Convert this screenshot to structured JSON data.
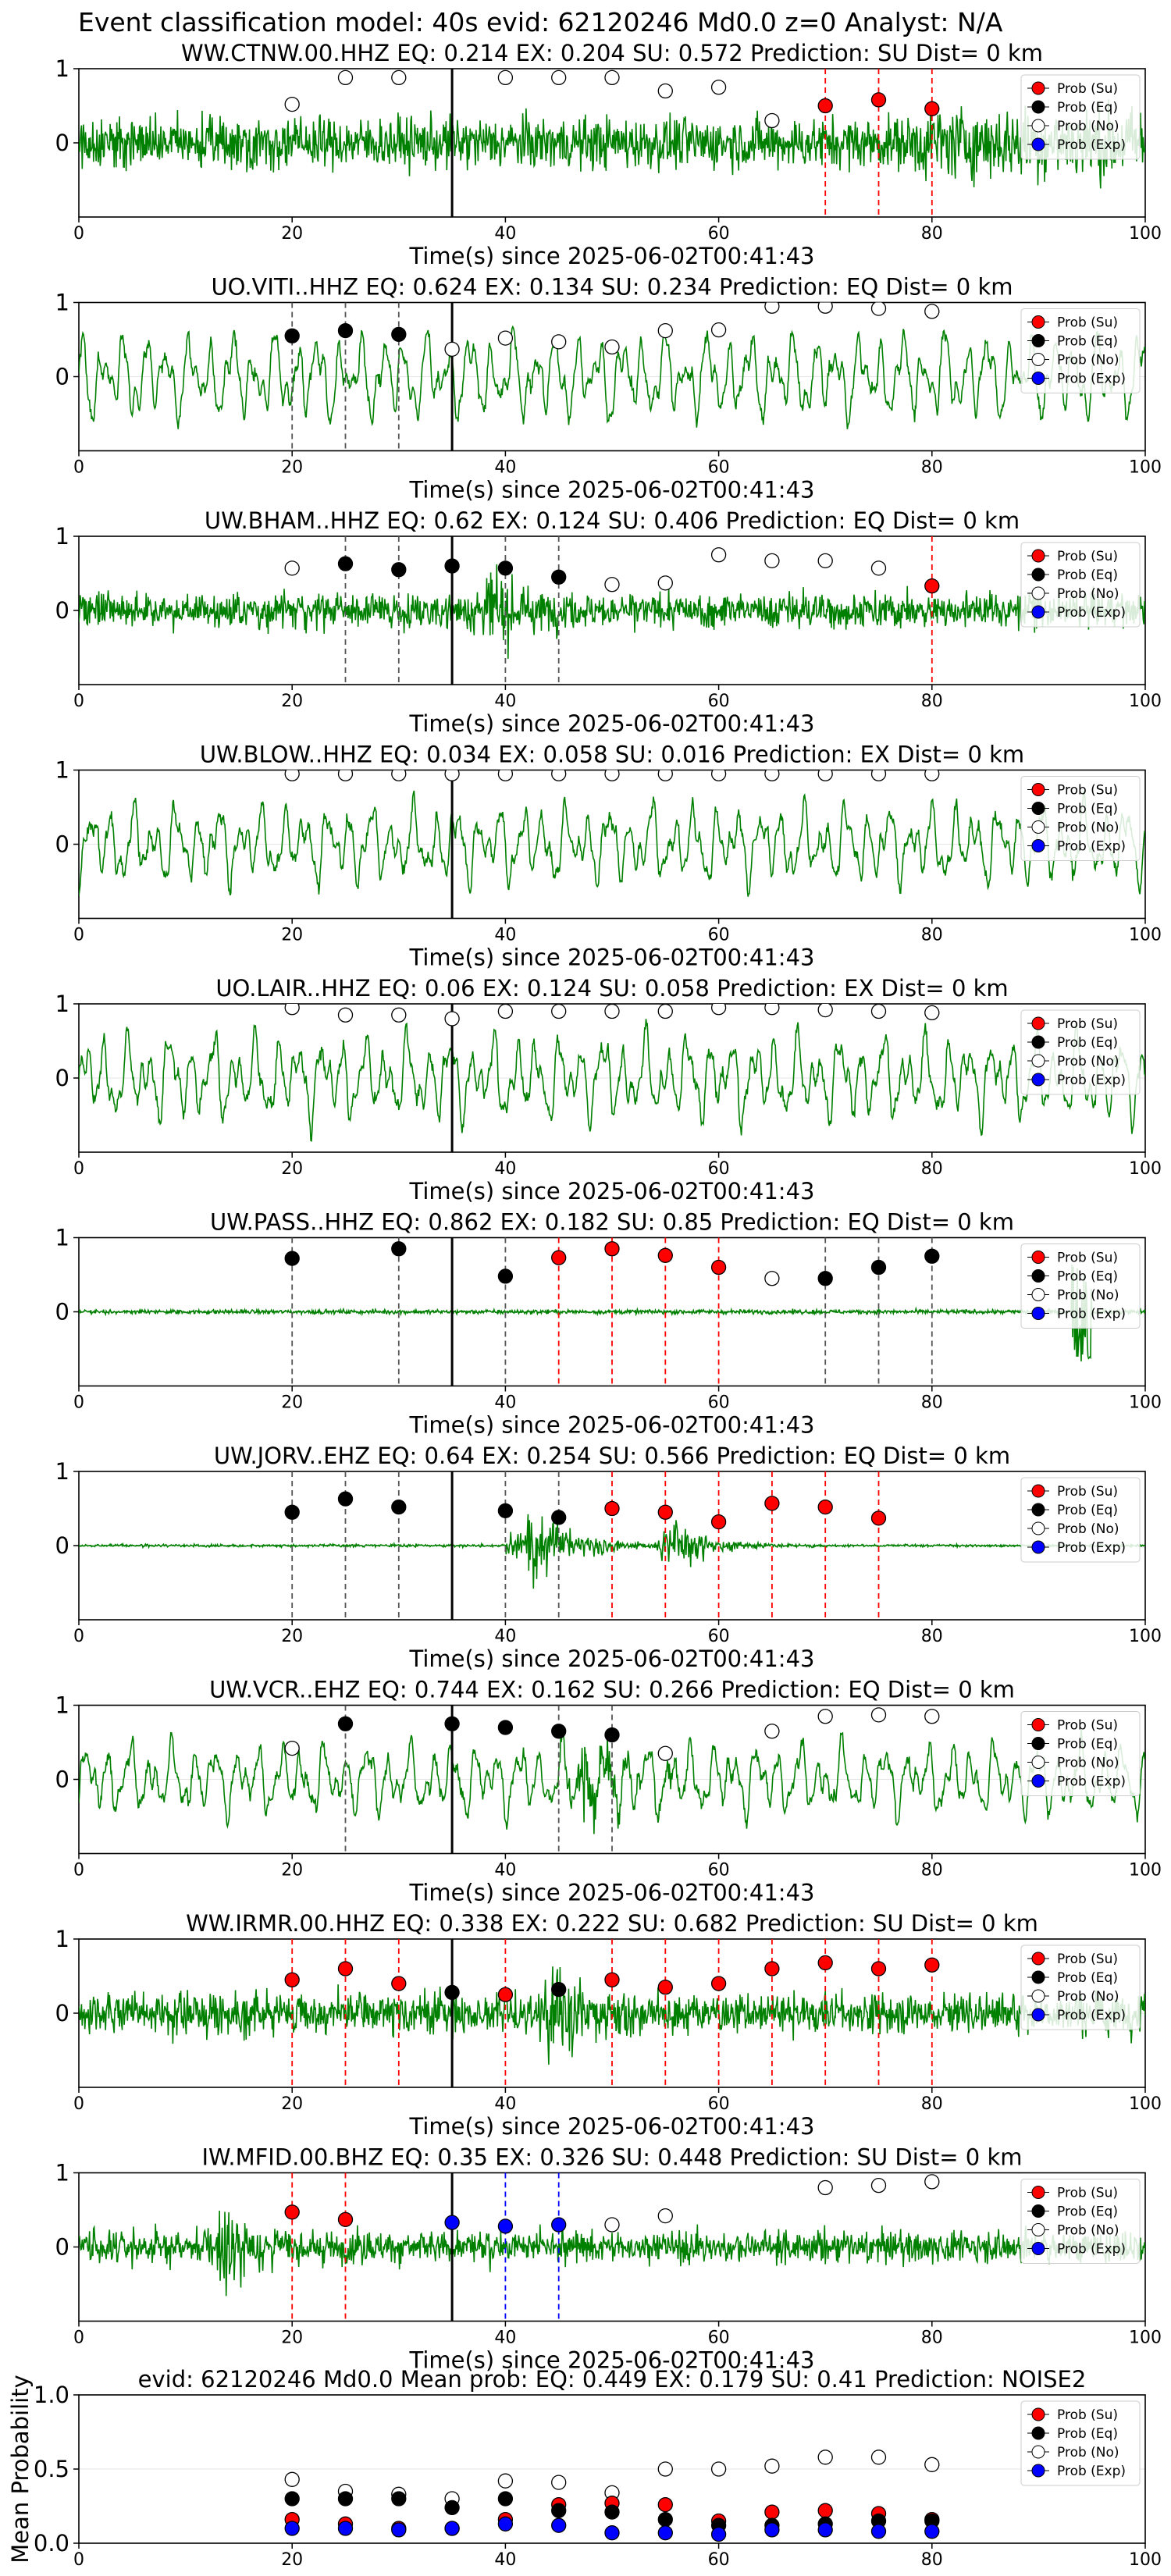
{
  "figure": {
    "suptitle": "Event classification model: 40s evid: 62120246 Md0.0 z=0 Analyst: N/A"
  },
  "legend_labels": [
    "Prob (Su)",
    "Prob (Eq)",
    "Prob (No)",
    "Prob (Exp)"
  ],
  "colors": {
    "su": "#ff0000",
    "eq": "#000000",
    "no": "#ffffff",
    "exp": "#0000ff",
    "waveform": "#008000",
    "origin_line": "#000000",
    "su_line": "#ff0000",
    "eq_line": "#555555",
    "exp_line": "#0000ff"
  },
  "xlabel": "Time(s) since 2025-06-02T00:41:43",
  "origin_time_s": 35,
  "chart_data": [
    {
      "type": "line",
      "title": "WW.CTNW.00.HHZ   EQ: 0.214  EX: 0.204  SU: 0.572   Prediction: SU    Dist= 0 km",
      "xlabel": "Time(s) since 2025-06-02T00:41:43",
      "xlim": [
        0,
        100
      ],
      "ylim": [
        -1,
        1
      ],
      "xticks": [
        0,
        20,
        40,
        60,
        80,
        100
      ],
      "yticks": [
        0,
        1
      ],
      "waveform": {
        "style": "noise",
        "amplitude": 0.45,
        "tail_boost": 1.4
      },
      "prob_points": {
        "no": [
          [
            20,
            0.52
          ],
          [
            25,
            0.88
          ],
          [
            30,
            0.88
          ],
          [
            40,
            0.88
          ],
          [
            45,
            0.88
          ],
          [
            50,
            0.88
          ],
          [
            55,
            0.7
          ],
          [
            60,
            0.75
          ],
          [
            65,
            0.3
          ]
        ],
        "su": [
          [
            70,
            0.5
          ],
          [
            75,
            0.58
          ],
          [
            80,
            0.46
          ]
        ],
        "eq": [],
        "exp": []
      },
      "picks": {
        "su": [
          70,
          75,
          80
        ],
        "eq": [],
        "exp": []
      }
    },
    {
      "type": "line",
      "title": "UO.VITI..HHZ   EQ: 0.624  EX: 0.134  SU: 0.234   Prediction: EQ    Dist= 0 km",
      "xlabel": "Time(s) since 2025-06-02T00:41:43",
      "xlim": [
        0,
        100
      ],
      "ylim": [
        -1,
        1
      ],
      "xticks": [
        0,
        20,
        40,
        60,
        80,
        100
      ],
      "yticks": [
        0,
        1
      ],
      "waveform": {
        "style": "wavy",
        "amplitude": 0.6
      },
      "prob_points": {
        "eq": [
          [
            20,
            0.55
          ],
          [
            25,
            0.62
          ],
          [
            30,
            0.57
          ]
        ],
        "no": [
          [
            35,
            0.37
          ],
          [
            40,
            0.52
          ],
          [
            45,
            0.47
          ],
          [
            50,
            0.4
          ],
          [
            55,
            0.62
          ],
          [
            60,
            0.63
          ],
          [
            65,
            0.95
          ],
          [
            70,
            0.95
          ],
          [
            75,
            0.92
          ],
          [
            80,
            0.88
          ]
        ],
        "su": [],
        "exp": []
      },
      "picks": {
        "su": [],
        "eq": [
          20,
          25,
          30
        ],
        "exp": []
      }
    },
    {
      "type": "line",
      "title": "UW.BHAM..HHZ   EQ: 0.62  EX: 0.124  SU: 0.406   Prediction: EQ    Dist= 0 km",
      "xlabel": "Time(s) since 2025-06-02T00:41:43",
      "xlim": [
        0,
        100
      ],
      "ylim": [
        -1,
        1
      ],
      "xticks": [
        0,
        20,
        40,
        60,
        80,
        100
      ],
      "yticks": [
        0,
        1
      ],
      "waveform": {
        "style": "noise",
        "amplitude": 0.3,
        "burst_at": 38,
        "burst_amp": 0.75
      },
      "prob_points": {
        "no": [
          [
            20,
            0.57
          ],
          [
            50,
            0.35
          ],
          [
            55,
            0.37
          ],
          [
            60,
            0.75
          ],
          [
            65,
            0.67
          ],
          [
            70,
            0.67
          ],
          [
            75,
            0.57
          ]
        ],
        "eq": [
          [
            25,
            0.63
          ],
          [
            30,
            0.55
          ],
          [
            35,
            0.6
          ],
          [
            40,
            0.57
          ],
          [
            45,
            0.45
          ]
        ],
        "su": [
          [
            80,
            0.33
          ]
        ],
        "exp": []
      },
      "picks": {
        "su": [
          80
        ],
        "eq": [
          25,
          30,
          40,
          45
        ],
        "exp": []
      }
    },
    {
      "type": "line",
      "title": "UW.BLOW..HHZ   EQ: 0.034  EX: 0.058  SU: 0.016   Prediction: EX    Dist= 0 km",
      "xlabel": "Time(s) since 2025-06-02T00:41:43",
      "xlim": [
        0,
        100
      ],
      "ylim": [
        -1,
        1
      ],
      "xticks": [
        0,
        20,
        40,
        60,
        80,
        100
      ],
      "yticks": [
        0,
        1
      ],
      "waveform": {
        "style": "wavy",
        "amplitude": 0.55
      },
      "prob_points": {
        "no": [
          [
            20,
            0.95
          ],
          [
            25,
            0.95
          ],
          [
            30,
            0.95
          ],
          [
            35,
            0.95
          ],
          [
            40,
            0.95
          ],
          [
            45,
            0.95
          ],
          [
            50,
            0.95
          ],
          [
            55,
            0.95
          ],
          [
            60,
            0.95
          ],
          [
            65,
            0.95
          ],
          [
            70,
            0.95
          ],
          [
            75,
            0.95
          ],
          [
            80,
            0.95
          ]
        ],
        "su": [],
        "eq": [],
        "exp": []
      },
      "picks": {
        "su": [],
        "eq": [],
        "exp": []
      }
    },
    {
      "type": "line",
      "title": "UO.LAIR..HHZ   EQ: 0.06  EX: 0.124  SU: 0.058   Prediction: EX    Dist= 0 km",
      "xlabel": "Time(s) since 2025-06-02T00:41:43",
      "xlim": [
        0,
        100
      ],
      "ylim": [
        -1,
        1
      ],
      "xticks": [
        0,
        20,
        40,
        60,
        80,
        100
      ],
      "yticks": [
        0,
        1
      ],
      "waveform": {
        "style": "wavy",
        "amplitude": 0.6
      },
      "prob_points": {
        "no": [
          [
            20,
            0.95
          ],
          [
            25,
            0.85
          ],
          [
            30,
            0.85
          ],
          [
            35,
            0.8
          ],
          [
            40,
            0.9
          ],
          [
            45,
            0.9
          ],
          [
            50,
            0.9
          ],
          [
            55,
            0.9
          ],
          [
            60,
            0.95
          ],
          [
            65,
            0.95
          ],
          [
            70,
            0.92
          ],
          [
            75,
            0.9
          ],
          [
            80,
            0.88
          ]
        ],
        "su": [],
        "eq": [],
        "exp": []
      },
      "picks": {
        "su": [],
        "eq": [],
        "exp": []
      }
    },
    {
      "type": "line",
      "title": "UW.PASS..HHZ   EQ: 0.862  EX: 0.182  SU: 0.85   Prediction: EQ    Dist= 0 km",
      "xlabel": "Time(s) since 2025-06-02T00:41:43",
      "xlim": [
        0,
        100
      ],
      "ylim": [
        -1,
        1
      ],
      "xticks": [
        0,
        20,
        40,
        60,
        80,
        100
      ],
      "yticks": [
        0,
        1
      ],
      "waveform": {
        "style": "quiet",
        "amplitude": 0.05,
        "tail_spike": 0.65
      },
      "prob_points": {
        "eq": [
          [
            20,
            0.72
          ],
          [
            30,
            0.85
          ],
          [
            40,
            0.48
          ],
          [
            70,
            0.45
          ],
          [
            75,
            0.6
          ],
          [
            80,
            0.75
          ]
        ],
        "su": [
          [
            45,
            0.73
          ],
          [
            50,
            0.85
          ],
          [
            55,
            0.76
          ],
          [
            60,
            0.6
          ]
        ],
        "no": [
          [
            65,
            0.45
          ]
        ],
        "exp": []
      },
      "picks": {
        "su": [
          45,
          50,
          55,
          60
        ],
        "eq": [
          20,
          30,
          40,
          70,
          75,
          80
        ],
        "exp": []
      }
    },
    {
      "type": "line",
      "title": "UW.JORV..EHZ   EQ: 0.64  EX: 0.254  SU: 0.566   Prediction: EQ    Dist= 0 km",
      "xlabel": "Time(s) since 2025-06-02T00:41:43",
      "xlim": [
        0,
        100
      ],
      "ylim": [
        -1,
        1
      ],
      "xticks": [
        0,
        20,
        40,
        60,
        80,
        100
      ],
      "yticks": [
        0,
        1
      ],
      "waveform": {
        "style": "quiet",
        "amplitude": 0.03,
        "burst_at": 42,
        "burst_amp": 0.85,
        "burst2_at": 56,
        "burst2_amp": 0.45
      },
      "prob_points": {
        "eq": [
          [
            20,
            0.45
          ],
          [
            25,
            0.63
          ],
          [
            30,
            0.52
          ],
          [
            40,
            0.47
          ],
          [
            45,
            0.38
          ]
        ],
        "su": [
          [
            50,
            0.5
          ],
          [
            55,
            0.45
          ],
          [
            60,
            0.32
          ],
          [
            65,
            0.57
          ],
          [
            70,
            0.52
          ],
          [
            75,
            0.37
          ]
        ],
        "no": [],
        "exp": []
      },
      "picks": {
        "su": [
          50,
          55,
          60,
          65,
          70,
          75
        ],
        "eq": [
          20,
          25,
          30,
          40,
          45
        ],
        "exp": []
      }
    },
    {
      "type": "line",
      "title": "UW.VCR..EHZ   EQ: 0.744  EX: 0.162  SU: 0.266   Prediction: EQ    Dist= 0 km",
      "xlabel": "Time(s) since 2025-06-02T00:41:43",
      "xlim": [
        0,
        100
      ],
      "ylim": [
        -1,
        1
      ],
      "xticks": [
        0,
        20,
        40,
        60,
        80,
        100
      ],
      "yticks": [
        0,
        1
      ],
      "waveform": {
        "style": "wavy",
        "amplitude": 0.5,
        "burst_at": 47,
        "burst_amp": 0.8
      },
      "prob_points": {
        "no": [
          [
            20,
            0.42
          ],
          [
            55,
            0.35
          ],
          [
            65,
            0.65
          ],
          [
            70,
            0.85
          ],
          [
            75,
            0.87
          ],
          [
            80,
            0.85
          ]
        ],
        "eq": [
          [
            25,
            0.75
          ],
          [
            35,
            0.75
          ],
          [
            40,
            0.7
          ],
          [
            45,
            0.65
          ],
          [
            50,
            0.6
          ]
        ],
        "su": [],
        "exp": []
      },
      "picks": {
        "su": [],
        "eq": [
          25,
          45,
          50
        ],
        "exp": []
      }
    },
    {
      "type": "line",
      "title": "WW.IRMR.00.HHZ   EQ: 0.338  EX: 0.222  SU: 0.682   Prediction: SU    Dist= 0 km",
      "xlabel": "Time(s) since 2025-06-02T00:41:43",
      "xlim": [
        0,
        100
      ],
      "ylim": [
        -1,
        1
      ],
      "xticks": [
        0,
        20,
        40,
        60,
        80,
        100
      ],
      "yticks": [
        0,
        1
      ],
      "waveform": {
        "style": "noise",
        "amplitude": 0.35,
        "burst_at": 44,
        "burst_amp": 0.95
      },
      "prob_points": {
        "su": [
          [
            20,
            0.45
          ],
          [
            25,
            0.6
          ],
          [
            30,
            0.4
          ],
          [
            40,
            0.25
          ],
          [
            50,
            0.45
          ],
          [
            55,
            0.35
          ],
          [
            60,
            0.4
          ],
          [
            65,
            0.6
          ],
          [
            70,
            0.68
          ],
          [
            75,
            0.6
          ],
          [
            80,
            0.65
          ]
        ],
        "eq": [
          [
            35,
            0.28
          ],
          [
            45,
            0.32
          ]
        ],
        "no": [],
        "exp": []
      },
      "picks": {
        "su": [
          20,
          25,
          30,
          40,
          50,
          55,
          60,
          65,
          70,
          75,
          80
        ],
        "eq": [],
        "exp": []
      }
    },
    {
      "type": "line",
      "title": "IW.MFID.00.BHZ   EQ: 0.35  EX: 0.326  SU: 0.448   Prediction: SU    Dist= 0 km",
      "xlabel": "Time(s) since 2025-06-02T00:41:43",
      "xlim": [
        0,
        100
      ],
      "ylim": [
        -1,
        1
      ],
      "xticks": [
        0,
        20,
        40,
        60,
        80,
        100
      ],
      "yticks": [
        0,
        1
      ],
      "waveform": {
        "style": "noise",
        "amplitude": 0.28,
        "burst_at": 13,
        "burst_amp": 0.95
      },
      "prob_points": {
        "su": [
          [
            20,
            0.47
          ],
          [
            25,
            0.37
          ]
        ],
        "exp": [
          [
            35,
            0.33
          ],
          [
            40,
            0.28
          ],
          [
            45,
            0.3
          ]
        ],
        "no": [
          [
            50,
            0.3
          ],
          [
            55,
            0.42
          ],
          [
            70,
            0.8
          ],
          [
            75,
            0.83
          ],
          [
            80,
            0.88
          ]
        ],
        "eq": []
      },
      "picks": {
        "su": [
          20,
          25
        ],
        "eq": [],
        "exp": [
          40,
          45
        ]
      }
    },
    {
      "type": "scatter",
      "title": "evid: 62120246  Md0.0   Mean prob:   EQ: 0.449  EX: 0.179  SU: 0.41   Prediction: NOISE2",
      "ylabel": "Mean Probability",
      "xlim": [
        0,
        100
      ],
      "ylim": [
        0,
        1
      ],
      "xticks": [
        0,
        20,
        40,
        60,
        80,
        100
      ],
      "yticks": [
        0.0,
        0.5,
        1.0
      ],
      "prob_points": {
        "no": [
          [
            20,
            0.43
          ],
          [
            25,
            0.35
          ],
          [
            30,
            0.33
          ],
          [
            35,
            0.3
          ],
          [
            40,
            0.42
          ],
          [
            45,
            0.41
          ],
          [
            50,
            0.34
          ],
          [
            55,
            0.5
          ],
          [
            60,
            0.5
          ],
          [
            65,
            0.52
          ],
          [
            70,
            0.58
          ],
          [
            75,
            0.58
          ],
          [
            80,
            0.53
          ]
        ],
        "eq": [
          [
            20,
            0.3
          ],
          [
            25,
            0.3
          ],
          [
            30,
            0.3
          ],
          [
            35,
            0.24
          ],
          [
            40,
            0.3
          ],
          [
            45,
            0.22
          ],
          [
            50,
            0.21
          ],
          [
            55,
            0.16
          ],
          [
            60,
            0.12
          ],
          [
            65,
            0.12
          ],
          [
            70,
            0.13
          ],
          [
            75,
            0.15
          ],
          [
            80,
            0.15
          ]
        ],
        "su": [
          [
            20,
            0.16
          ],
          [
            25,
            0.13
          ],
          [
            30,
            0.1
          ],
          [
            35,
            0.1
          ],
          [
            40,
            0.16
          ],
          [
            45,
            0.26
          ],
          [
            50,
            0.27
          ],
          [
            55,
            0.26
          ],
          [
            60,
            0.15
          ],
          [
            65,
            0.21
          ],
          [
            70,
            0.22
          ],
          [
            75,
            0.2
          ],
          [
            80,
            0.16
          ]
        ],
        "exp": [
          [
            20,
            0.1
          ],
          [
            25,
            0.1
          ],
          [
            30,
            0.09
          ],
          [
            35,
            0.1
          ],
          [
            40,
            0.13
          ],
          [
            45,
            0.12
          ],
          [
            50,
            0.07
          ],
          [
            55,
            0.07
          ],
          [
            60,
            0.06
          ],
          [
            65,
            0.09
          ],
          [
            70,
            0.09
          ],
          [
            75,
            0.08
          ],
          [
            80,
            0.08
          ]
        ]
      }
    }
  ]
}
